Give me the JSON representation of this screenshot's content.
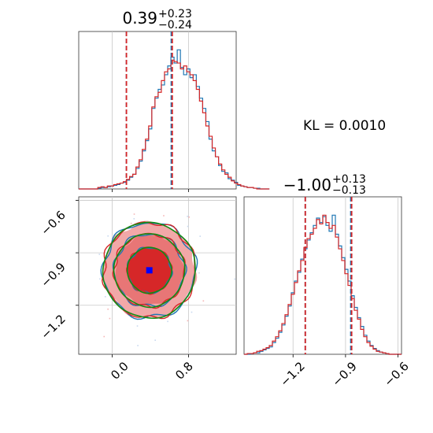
{
  "colors": {
    "blue": "#1f77b4",
    "red": "#d62728",
    "green": "#138a13",
    "grid": "#c8c8c8",
    "fill_outer": "#f2a8a8",
    "fill_mid": "#e87676",
    "fill_inner": "#d62728",
    "truth_marker": "#0000ff"
  },
  "annotation": {
    "kl": "KL = 0.0010"
  },
  "chart_data": [
    {
      "panel": "x-marginal",
      "type": "histogram",
      "title": {
        "main": "0.39",
        "plus": "+0.23",
        "minus": "−0.24"
      },
      "xlim": [
        -0.35,
        1.3
      ],
      "ylim": [
        0,
        1.0
      ],
      "grid": true,
      "quantile_lines": {
        "blue": [
          0.15,
          0.62
        ],
        "red": [
          0.15,
          0.63
        ]
      },
      "bin_width": 0.0333,
      "bin_start": -0.35,
      "series": [
        {
          "color": "blue",
          "values": [
            0,
            0,
            0,
            0,
            0,
            0,
            0.005,
            0.01,
            0.01,
            0.015,
            0.02,
            0.025,
            0.03,
            0.04,
            0.045,
            0.06,
            0.08,
            0.1,
            0.14,
            0.19,
            0.26,
            0.33,
            0.41,
            0.55,
            0.62,
            0.68,
            0.71,
            0.78,
            0.84,
            0.9,
            0.86,
            0.95,
            0.83,
            0.78,
            0.82,
            0.76,
            0.78,
            0.7,
            0.62,
            0.55,
            0.46,
            0.34,
            0.26,
            0.22,
            0.16,
            0.12,
            0.11,
            0.07,
            0.06,
            0.045,
            0.025,
            0.02,
            0.015,
            0.01,
            0.01,
            0.005,
            0.005,
            0,
            0,
            0
          ]
        },
        {
          "color": "red",
          "values": [
            0,
            0,
            0,
            0,
            0,
            0,
            0.01,
            0.015,
            0.01,
            0.02,
            0.02,
            0.03,
            0.035,
            0.04,
            0.05,
            0.065,
            0.085,
            0.1,
            0.15,
            0.2,
            0.27,
            0.34,
            0.43,
            0.56,
            0.63,
            0.66,
            0.74,
            0.8,
            0.82,
            0.88,
            0.87,
            0.86,
            0.82,
            0.84,
            0.8,
            0.78,
            0.74,
            0.68,
            0.6,
            0.52,
            0.43,
            0.36,
            0.28,
            0.22,
            0.17,
            0.13,
            0.1,
            0.08,
            0.055,
            0.04,
            0.03,
            0.02,
            0.015,
            0.01,
            0.01,
            0.005,
            0,
            0,
            0,
            0
          ]
        }
      ],
      "tick_values": [
        0.0,
        0.8
      ]
    },
    {
      "panel": "y-marginal",
      "type": "histogram",
      "title": {
        "main": "−1.00",
        "plus": "+0.13",
        "minus": "−0.13"
      },
      "xlim": [
        -1.48,
        -0.58
      ],
      "ylim": [
        0,
        1.0
      ],
      "grid": true,
      "quantile_lines": {
        "blue": [
          -1.13,
          -0.87
        ],
        "red": [
          -1.13,
          -0.865
        ]
      },
      "bin_width": 0.018,
      "bin_start": -1.48,
      "series": [
        {
          "color": "blue",
          "values": [
            0,
            0,
            0.005,
            0.01,
            0.01,
            0.02,
            0.03,
            0.04,
            0.05,
            0.08,
            0.11,
            0.15,
            0.2,
            0.26,
            0.33,
            0.42,
            0.5,
            0.56,
            0.65,
            0.72,
            0.78,
            0.83,
            0.88,
            0.93,
            0.9,
            0.94,
            0.88,
            0.84,
            0.95,
            0.82,
            0.74,
            0.66,
            0.58,
            0.5,
            0.4,
            0.32,
            0.25,
            0.19,
            0.13,
            0.09,
            0.06,
            0.04,
            0.025,
            0.015,
            0.01,
            0.005,
            0,
            0,
            0,
            0
          ]
        },
        {
          "color": "red",
          "values": [
            0,
            0.005,
            0.005,
            0.01,
            0.02,
            0.025,
            0.035,
            0.045,
            0.06,
            0.09,
            0.12,
            0.16,
            0.21,
            0.27,
            0.34,
            0.41,
            0.49,
            0.57,
            0.64,
            0.73,
            0.79,
            0.82,
            0.86,
            0.92,
            0.89,
            0.95,
            0.9,
            0.86,
            0.88,
            0.8,
            0.72,
            0.64,
            0.55,
            0.47,
            0.38,
            0.3,
            0.24,
            0.17,
            0.12,
            0.08,
            0.055,
            0.035,
            0.02,
            0.015,
            0.01,
            0.005,
            0,
            0,
            0,
            0
          ]
        }
      ],
      "tick_values": [
        -1.2,
        -0.9,
        -0.6
      ]
    },
    {
      "panel": "joint",
      "type": "contour",
      "xlim": [
        -0.35,
        1.3
      ],
      "ylim": [
        -1.48,
        -0.58
      ],
      "grid": true,
      "truth_point": {
        "x": 0.39,
        "y": -1.0
      },
      "filled_levels_sigma": [
        1.0,
        1.55,
        2.1
      ],
      "contour_sigma_blue": [
        1.0,
        1.6,
        2.1
      ],
      "contour_sigma_red": [
        1.0,
        1.6,
        2.1
      ],
      "contour_sigma_green": [
        1.0,
        1.6,
        2.1
      ],
      "sigma_x": 0.23,
      "sigma_y": 0.13,
      "x_tick_values": [
        0.0,
        0.8
      ],
      "y_tick_values": [
        -0.6,
        -0.9,
        -1.2
      ]
    }
  ],
  "tick_labels": {
    "x0": "0.0",
    "x1": "0.8",
    "y_marg_0": "−1.2",
    "y_marg_1": "−0.9",
    "y_marg_2": "−0.6",
    "y_joint_0": "−0.6",
    "y_joint_1": "−0.9",
    "y_joint_2": "−1.2"
  }
}
